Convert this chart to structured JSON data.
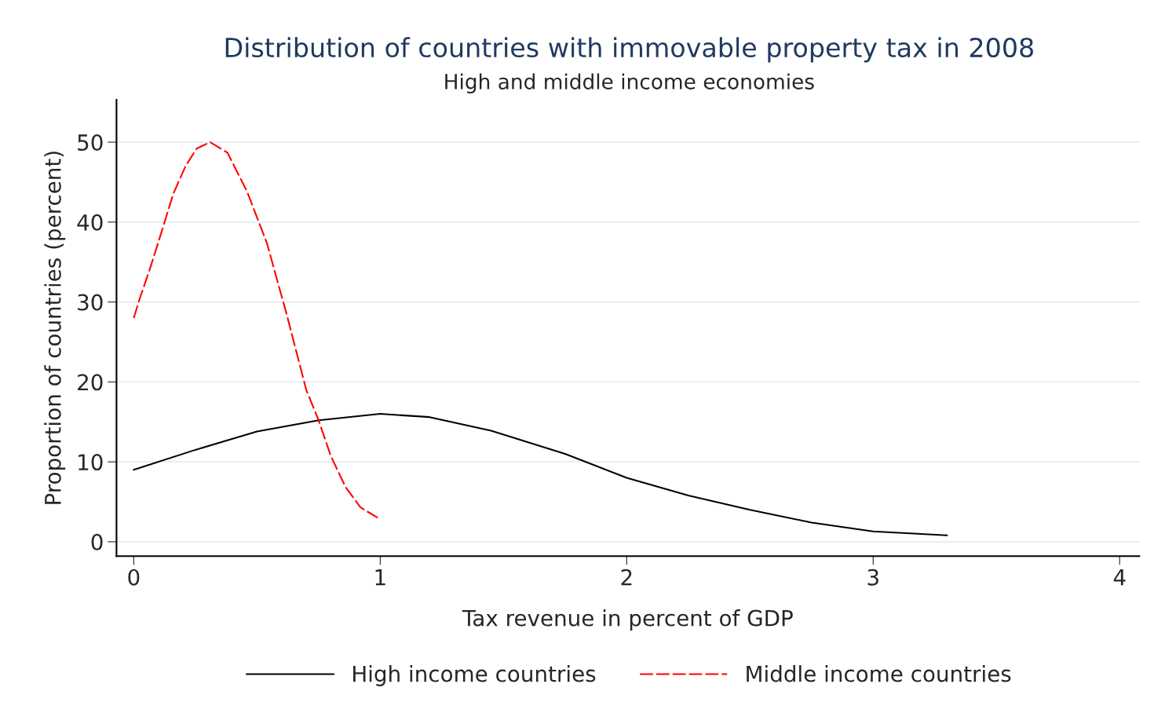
{
  "chart_data": {
    "type": "line",
    "title": "Distribution of countries with immovable property tax in 2008",
    "subtitle": "High and middle income economies",
    "xlabel": "Tax revenue in percent of GDP",
    "ylabel": "Proportion of countries (percent)",
    "xlim": [
      -0.07,
      4.08
    ],
    "xticks": [
      0,
      1,
      2,
      3,
      4
    ],
    "ylim": [
      -1.8,
      55.3
    ],
    "yticks": [
      0,
      10,
      20,
      30,
      40,
      50
    ],
    "grid": "y",
    "legend": "bottom",
    "series": [
      {
        "name": "High income countries",
        "color": "#000000",
        "line_style": "solid",
        "x": [
          0.0,
          0.25,
          0.5,
          0.75,
          1.0,
          1.2,
          1.45,
          1.75,
          2.0,
          2.25,
          2.5,
          2.75,
          3.0,
          3.3
        ],
        "values": [
          9,
          11.5,
          13.8,
          15.2,
          16,
          15.6,
          13.9,
          11,
          8,
          5.8,
          4,
          2.4,
          1.3,
          0.8
        ]
      },
      {
        "name": "Middle income countries",
        "color": "#ff0000",
        "line_style": "dashed",
        "x": [
          0.0,
          0.025,
          0.064,
          0.11,
          0.16,
          0.21,
          0.255,
          0.31,
          0.38,
          0.46,
          0.54,
          0.62,
          0.7,
          0.75,
          0.8,
          0.86,
          0.92,
          0.99
        ],
        "values": [
          28,
          30.5,
          34,
          38.5,
          43.5,
          47,
          49.2,
          50,
          48.7,
          43.8,
          37.4,
          28.5,
          19,
          15.2,
          10.7,
          6.8,
          4.3,
          3
        ]
      }
    ]
  }
}
